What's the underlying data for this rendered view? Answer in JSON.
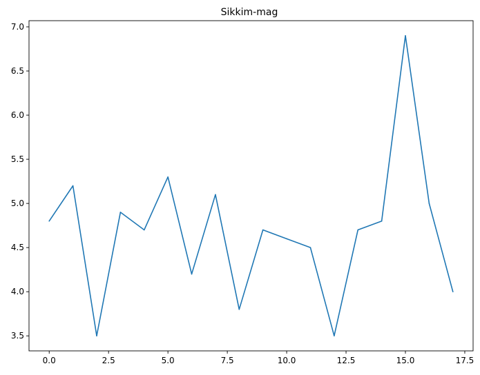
{
  "chart_data": {
    "type": "line",
    "title": "Sikkim-mag",
    "xlabel": "",
    "ylabel": "",
    "xlim": [
      -0.85,
      17.85
    ],
    "ylim": [
      3.33,
      7.07
    ],
    "xticks": [
      0.0,
      2.5,
      5.0,
      7.5,
      10.0,
      12.5,
      15.0,
      17.5
    ],
    "xtick_labels": [
      "0.0",
      "2.5",
      "5.0",
      "7.5",
      "10.0",
      "12.5",
      "15.0",
      "17.5"
    ],
    "yticks": [
      3.5,
      4.0,
      4.5,
      5.0,
      5.5,
      6.0,
      6.5,
      7.0
    ],
    "ytick_labels": [
      "3.5",
      "4.0",
      "4.5",
      "5.0",
      "5.5",
      "6.0",
      "6.5",
      "7.0"
    ],
    "grid": false,
    "series": [
      {
        "color": "#1f77b4",
        "x": [
          0,
          1,
          2,
          3,
          4,
          5,
          6,
          7,
          8,
          9,
          10,
          11,
          12,
          13,
          14,
          15,
          16,
          17
        ],
        "values": [
          4.8,
          5.2,
          3.5,
          4.9,
          4.7,
          5.3,
          4.2,
          5.1,
          3.8,
          4.7,
          4.6,
          4.5,
          3.5,
          4.7,
          4.8,
          6.9,
          5.0,
          4.0
        ]
      }
    ]
  }
}
